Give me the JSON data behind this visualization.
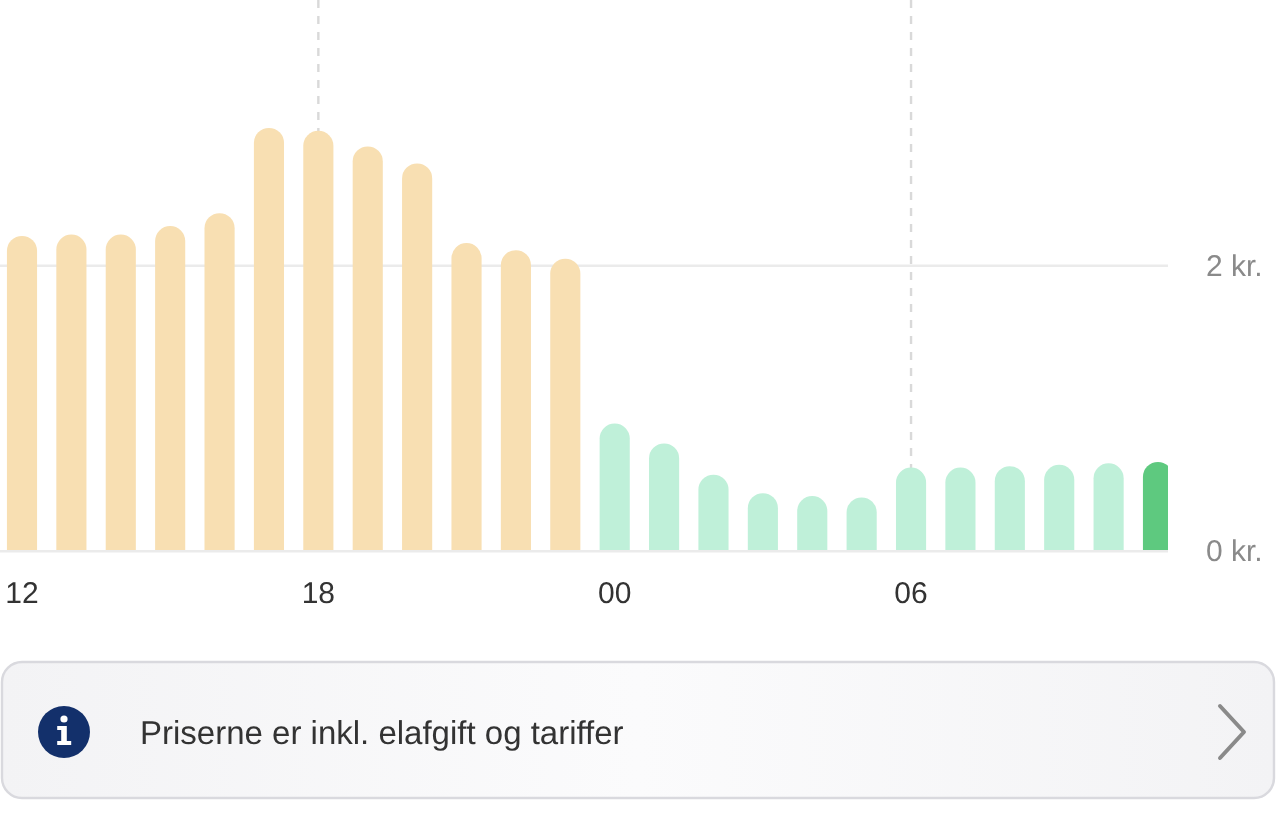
{
  "chart_data": {
    "type": "bar",
    "categories": [
      "12",
      null,
      null,
      null,
      null,
      null,
      "18",
      null,
      null,
      null,
      null,
      null,
      "00",
      null,
      null,
      null,
      null,
      null,
      "06",
      null,
      null,
      null,
      null,
      null
    ],
    "values": [
      2.21,
      2.22,
      2.22,
      2.28,
      2.37,
      2.97,
      2.95,
      2.84,
      2.72,
      2.16,
      2.11,
      2.05,
      0.89,
      0.75,
      0.53,
      0.4,
      0.38,
      0.37,
      0.58,
      0.58,
      0.59,
      0.6,
      0.61,
      0.62
    ],
    "colors": [
      "#f8dfb2",
      "#f8dfb2",
      "#f8dfb2",
      "#f8dfb2",
      "#f8dfb2",
      "#f8dfb2",
      "#f8dfb2",
      "#f8dfb2",
      "#f8dfb2",
      "#f8dfb2",
      "#f8dfb2",
      "#f8dfb2",
      "#bff0d9",
      "#bff0d9",
      "#bff0d9",
      "#bff0d9",
      "#bff0d9",
      "#bff0d9",
      "#bff0d9",
      "#bff0d9",
      "#bff0d9",
      "#bff0d9",
      "#bff0d9",
      "#5ec97f"
    ],
    "ylim": [
      0,
      3.87
    ],
    "yticks": [
      {
        "value": 0,
        "label": "0 kr."
      },
      {
        "value": 2,
        "label": "2 kr."
      }
    ],
    "ref_lines": [
      {
        "axis": "x",
        "value": "18",
        "color": "#d9d9d9",
        "line_style": "dashed"
      },
      {
        "axis": "x",
        "value": "06",
        "color": "#d9d9d9",
        "line_style": "dashed"
      },
      {
        "axis": "y",
        "value": 2,
        "color": "#ebebeb",
        "line_style": "solid"
      }
    ],
    "annotations": [
      "Priserne er inkl. elafgift og tariffer"
    ]
  }
}
